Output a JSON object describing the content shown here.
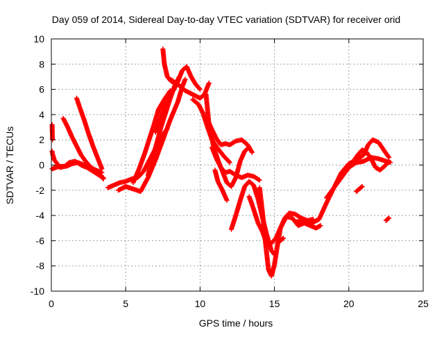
{
  "chart_data": {
    "type": "scatter",
    "title": "Day 059 of 2014, Sidereal Day-to-day VTEC variation (SDTVAR) for receiver orid",
    "xlabel": "GPS time / hours",
    "ylabel": "SDTVAR / TECUs",
    "xlim": [
      0,
      25
    ],
    "ylim": [
      -10,
      10
    ],
    "xticks": [
      0,
      5,
      10,
      15,
      20,
      25
    ],
    "yticks": [
      -10,
      -8,
      -6,
      -4,
      -2,
      0,
      2,
      4,
      6,
      8,
      10
    ],
    "xtick_labels": [
      "0",
      "5",
      "10",
      "15",
      "20",
      "25"
    ],
    "ytick_labels": [
      "-10",
      "-8",
      "-6",
      "-4",
      "-2",
      "0",
      "2",
      "4",
      "6",
      "8",
      "10"
    ],
    "grid": true,
    "marker": "plus",
    "color": "#ff0000",
    "series": [
      {
        "x": [
          0.05,
          0.1,
          0.2,
          0.4,
          0.6,
          0.9,
          1.2,
          1.6,
          2.0,
          2.4,
          2.8,
          3.2,
          3.5
        ],
        "y": [
          1.1,
          0.8,
          0.4,
          0.1,
          -0.2,
          -0.1,
          0.2,
          0.3,
          0.0,
          -0.2,
          -0.5,
          -0.8,
          -1.0
        ]
      },
      {
        "x": [
          0.05,
          0.3,
          0.6,
          1.0,
          1.4,
          1.8,
          2.2,
          2.6,
          3.0,
          3.4
        ],
        "y": [
          -0.3,
          -0.2,
          -0.1,
          -0.1,
          0.1,
          0.2,
          0.0,
          -0.2,
          -0.4,
          -0.6
        ]
      },
      {
        "x": [
          0.05,
          0.08
        ],
        "y": [
          3.2,
          2.0
        ]
      },
      {
        "x": [
          0.8,
          1.1,
          1.4,
          1.7,
          2.0,
          2.3,
          2.6,
          2.9,
          3.2,
          3.5
        ],
        "y": [
          3.7,
          3.0,
          2.2,
          1.5,
          0.8,
          0.3,
          -0.1,
          -0.4,
          -0.7,
          -1.1
        ]
      },
      {
        "x": [
          1.7,
          1.9,
          2.2,
          2.5,
          2.8,
          3.1,
          3.4
        ],
        "y": [
          5.3,
          4.6,
          3.6,
          2.5,
          1.5,
          0.6,
          -0.3
        ]
      },
      {
        "x": [
          3.8,
          4.2,
          4.6,
          5.0,
          5.4,
          5.8,
          6.2,
          6.6,
          7.0,
          7.4,
          7.8
        ],
        "y": [
          -1.8,
          -1.6,
          -1.4,
          -1.3,
          -1.1,
          -1.0,
          -0.5,
          0.4,
          1.3,
          2.2,
          2.9
        ]
      },
      {
        "x": [
          4.5,
          5.0,
          5.5,
          6.0,
          6.5,
          7.0,
          7.5,
          8.0,
          8.5,
          8.8,
          9.0
        ],
        "y": [
          -2.0,
          -1.7,
          -1.9,
          -2.1,
          -1.0,
          0.4,
          2.0,
          3.6,
          5.0,
          6.2,
          6.8
        ]
      },
      {
        "x": [
          5.5,
          5.9,
          6.3,
          6.6,
          6.9,
          7.2,
          7.6,
          8.0
        ],
        "y": [
          -1.4,
          -0.3,
          1.0,
          2.1,
          3.2,
          4.4,
          5.2,
          5.9
        ]
      },
      {
        "x": [
          6.5,
          6.8,
          7.1,
          7.4,
          7.7,
          8.0,
          8.3,
          8.6
        ],
        "y": [
          -0.8,
          0.5,
          1.8,
          3.1,
          4.2,
          5.3,
          6.3,
          7.0
        ]
      },
      {
        "x": [
          7.0,
          7.3,
          7.6,
          7.9,
          8.2,
          8.5,
          8.8,
          9.1,
          9.4,
          9.7,
          10.0
        ],
        "y": [
          2.6,
          3.6,
          4.7,
          5.4,
          5.9,
          6.6,
          7.5,
          7.8,
          7.0,
          6.4,
          6.0
        ]
      },
      {
        "x": [
          7.5,
          7.6,
          7.8,
          8.0,
          8.3
        ],
        "y": [
          9.2,
          8.0,
          7.0,
          6.7,
          6.5
        ]
      },
      {
        "x": [
          8.0,
          8.5,
          9.0,
          9.5,
          10.0,
          10.3,
          10.6
        ],
        "y": [
          6.8,
          6.4,
          5.9,
          5.6,
          5.3,
          5.6,
          6.5
        ]
      },
      {
        "x": [
          9.5,
          9.9,
          10.2,
          10.5,
          10.8,
          11.2,
          11.6,
          12.0
        ],
        "y": [
          5.2,
          4.8,
          4.1,
          3.0,
          2.0,
          1.3,
          0.7,
          0.2
        ]
      },
      {
        "x": [
          10.4,
          10.6,
          10.9,
          11.2,
          11.5,
          11.8,
          12.1,
          12.4,
          12.7,
          13.0,
          13.3
        ],
        "y": [
          5.6,
          3.2,
          1.5,
          0.4,
          -0.5,
          -1.4,
          -1.7,
          -1.0,
          0.3,
          1.1,
          1.4
        ]
      },
      {
        "x": [
          10.5,
          10.8,
          11.1,
          11.4,
          11.7,
          12.0,
          12.4,
          12.8,
          13.2,
          13.5
        ],
        "y": [
          3.6,
          2.8,
          2.1,
          1.6,
          1.7,
          1.6,
          1.9,
          2.0,
          1.6,
          1.0
        ]
      },
      {
        "x": [
          10.8,
          11.1,
          11.4,
          11.7,
          12.0,
          12.4,
          12.8,
          13.2,
          13.6,
          14.0
        ],
        "y": [
          1.4,
          0.5,
          -0.2,
          -0.6,
          -0.5,
          -0.8,
          -1.0,
          -0.8,
          -0.9,
          -1.2
        ]
      },
      {
        "x": [
          11.0,
          11.2,
          11.5,
          11.8
        ],
        "y": [
          -0.4,
          -1.3,
          -2.0,
          -2.8
        ]
      },
      {
        "x": [
          12.1,
          12.4,
          12.7,
          13.0,
          13.3,
          13.6,
          13.9,
          14.2,
          14.5,
          14.8,
          15.0
        ],
        "y": [
          -5.1,
          -4.0,
          -2.8,
          -1.7,
          -1.3,
          -1.6,
          -2.7,
          -4.2,
          -5.6,
          -6.8,
          -7.1
        ]
      },
      {
        "x": [
          13.3,
          13.6,
          13.9,
          14.2,
          14.5,
          14.8,
          15.1,
          15.4,
          15.8,
          16.2,
          16.6,
          17.0,
          17.4,
          17.8,
          18.1
        ],
        "y": [
          -2.5,
          -3.5,
          -4.6,
          -5.3,
          -6.3,
          -6.2,
          -5.8,
          -5.0,
          -4.1,
          -4.2,
          -4.8,
          -4.6,
          -4.8,
          -5.0,
          -4.8
        ]
      },
      {
        "x": [
          14.0,
          14.2,
          14.4,
          14.6,
          14.8,
          15.0,
          15.2,
          15.4,
          15.7,
          16.0,
          16.4,
          16.8,
          17.2,
          17.6
        ],
        "y": [
          -1.8,
          -3.8,
          -6.2,
          -8.3,
          -8.8,
          -7.9,
          -6.4,
          -5.0,
          -4.2,
          -3.8,
          -3.9,
          -4.2,
          -4.4,
          -4.3
        ]
      },
      {
        "x": [
          15.2,
          15.4,
          15.6
        ],
        "y": [
          -6.2,
          -6.0,
          -5.8
        ]
      },
      {
        "x": [
          16.5,
          17.0,
          17.5,
          18.0,
          18.5,
          19.0,
          19.5,
          20.0,
          20.5,
          21.0,
          21.5,
          22.0,
          22.5,
          22.8
        ],
        "y": [
          -4.5,
          -4.4,
          -4.6,
          -4.3,
          -3.0,
          -1.8,
          -1.0,
          -0.2,
          0.2,
          0.3,
          0.6,
          0.5,
          0.3,
          0.2
        ]
      },
      {
        "x": [
          18.5,
          19.0,
          19.5,
          20.0,
          20.5,
          21.0,
          21.3,
          21.6,
          22.0,
          22.4,
          22.7
        ],
        "y": [
          -2.6,
          -1.8,
          -0.6,
          0.1,
          0.4,
          0.8,
          1.6,
          2.0,
          1.8,
          1.1,
          0.6
        ]
      },
      {
        "x": [
          20.3,
          20.6,
          20.9,
          21.2,
          21.5,
          21.8,
          22.1,
          22.4,
          22.7
        ],
        "y": [
          0.3,
          0.8,
          1.2,
          1.0,
          0.5,
          -0.2,
          -0.4,
          -0.1,
          0.3
        ]
      },
      {
        "x": [
          20.5,
          20.7,
          20.9
        ],
        "y": [
          -2.1,
          -1.9,
          -1.7
        ]
      },
      {
        "x": [
          22.5,
          22.7
        ],
        "y": [
          -4.4,
          -4.2
        ]
      }
    ]
  }
}
